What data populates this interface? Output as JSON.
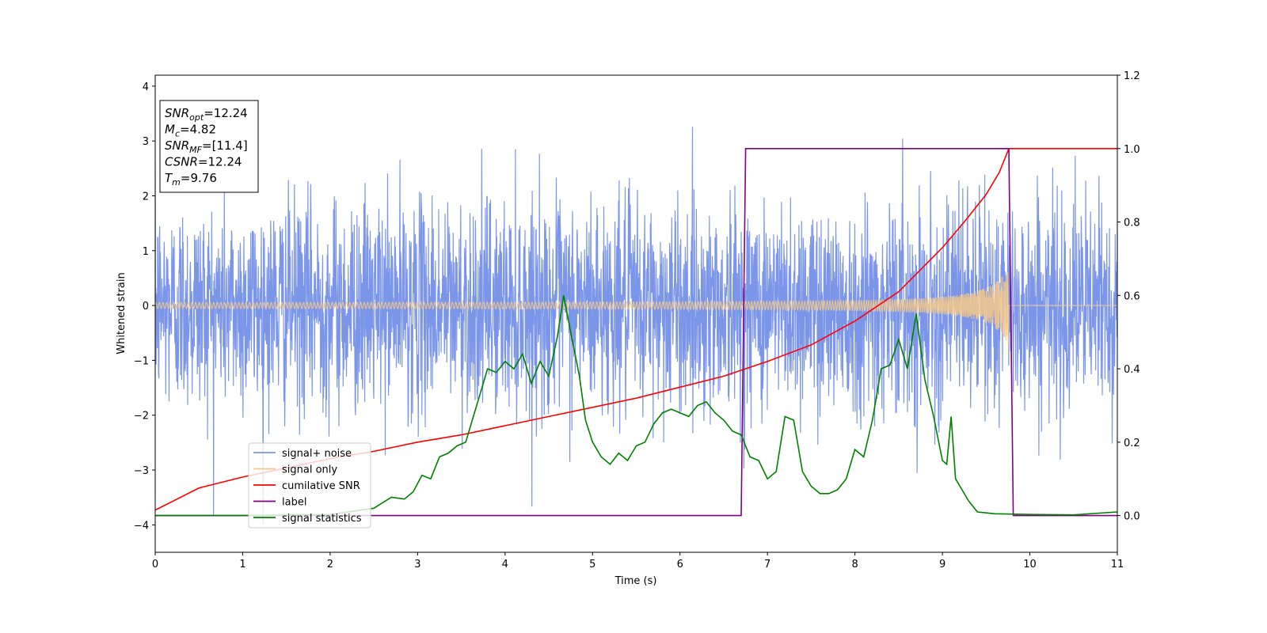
{
  "chart_data": {
    "type": "line",
    "title": "",
    "xlabel": "Time (s)",
    "ylabel": "Whitened strain",
    "xlim": [
      0,
      11
    ],
    "ylim": [
      -4.5,
      4.2
    ],
    "y2lim": [
      -0.1,
      1.2
    ],
    "x_ticks": [
      "0",
      "1",
      "2",
      "3",
      "4",
      "5",
      "6",
      "7",
      "8",
      "9",
      "10",
      "11"
    ],
    "y_ticks": [
      "−4",
      "−3",
      "−2",
      "−1",
      "0",
      "1",
      "2",
      "3",
      "4"
    ],
    "y2_ticks": [
      "0.0",
      "0.2",
      "0.4",
      "0.6",
      "0.8",
      "1.0",
      "1.2"
    ],
    "grid": false,
    "legend_position": "lower-left",
    "annotation_lines": [
      {
        "base": "SNR",
        "sub": "opt",
        "value": "=12.24"
      },
      {
        "base": "M",
        "sub": "c",
        "value": "=4.82"
      },
      {
        "base": "SNR",
        "sub": "MF",
        "value": "=[11.4]"
      },
      {
        "base": "CSNR",
        "sub": "",
        "value": "=12.24"
      },
      {
        "base": "T",
        "sub": "m",
        "value": "=9.76"
      }
    ],
    "series": [
      {
        "name": "signal+ noise",
        "color": "#7b96e8",
        "axis": "left",
        "kind": "noise",
        "std": 0.95,
        "t_end": 11
      },
      {
        "name": "signal only",
        "color": "#f5c88a",
        "axis": "left",
        "kind": "chirp",
        "t_start": 0,
        "t_merge": 9.76,
        "amp_start": 0.05,
        "amp_end": 0.75
      },
      {
        "name": "cumilative SNR",
        "color": "#ff0000",
        "axis": "right",
        "x": [
          0,
          0.5,
          1,
          1.5,
          2,
          2.5,
          3,
          3.5,
          4,
          4.5,
          5,
          5.5,
          6,
          6.5,
          7,
          7.5,
          8,
          8.5,
          9,
          9.25,
          9.5,
          9.65,
          9.76,
          10,
          10.5,
          11
        ],
        "values": [
          0.015,
          0.075,
          0.105,
          0.13,
          0.155,
          0.175,
          0.2,
          0.22,
          0.245,
          0.27,
          0.295,
          0.32,
          0.35,
          0.38,
          0.42,
          0.465,
          0.53,
          0.61,
          0.73,
          0.8,
          0.875,
          0.935,
          1.0,
          1.0,
          1.0,
          1.0
        ]
      },
      {
        "name": "label",
        "color": "#800080",
        "axis": "right",
        "x": [
          0,
          6.7,
          6.75,
          9.76,
          9.81,
          11
        ],
        "values": [
          0,
          0,
          1,
          1,
          0,
          0
        ]
      },
      {
        "name": "signal statistics",
        "color": "#008000",
        "axis": "right",
        "x": [
          0,
          1,
          2,
          2.5,
          2.7,
          2.85,
          2.95,
          3.05,
          3.15,
          3.25,
          3.35,
          3.45,
          3.55,
          3.7,
          3.8,
          3.9,
          4.0,
          4.1,
          4.2,
          4.3,
          4.4,
          4.5,
          4.6,
          4.67,
          4.75,
          4.85,
          4.92,
          5.0,
          5.1,
          5.2,
          5.3,
          5.4,
          5.5,
          5.6,
          5.7,
          5.8,
          5.9,
          6.0,
          6.1,
          6.2,
          6.3,
          6.4,
          6.5,
          6.6,
          6.7,
          6.8,
          6.9,
          7.0,
          7.1,
          7.2,
          7.3,
          7.4,
          7.5,
          7.6,
          7.7,
          7.8,
          7.9,
          8.0,
          8.1,
          8.2,
          8.3,
          8.4,
          8.5,
          8.6,
          8.7,
          8.8,
          8.9,
          9.0,
          9.05,
          9.1,
          9.15,
          9.2,
          9.3,
          9.4,
          9.6,
          10,
          10.5,
          11
        ],
        "values": [
          0,
          0,
          0.003,
          0.02,
          0.05,
          0.045,
          0.065,
          0.11,
          0.1,
          0.16,
          0.17,
          0.19,
          0.2,
          0.32,
          0.4,
          0.39,
          0.42,
          0.4,
          0.44,
          0.36,
          0.42,
          0.38,
          0.49,
          0.6,
          0.5,
          0.38,
          0.26,
          0.2,
          0.16,
          0.14,
          0.17,
          0.15,
          0.19,
          0.2,
          0.25,
          0.28,
          0.29,
          0.28,
          0.27,
          0.3,
          0.31,
          0.28,
          0.26,
          0.23,
          0.22,
          0.16,
          0.15,
          0.1,
          0.12,
          0.27,
          0.26,
          0.12,
          0.08,
          0.06,
          0.06,
          0.07,
          0.1,
          0.18,
          0.16,
          0.26,
          0.4,
          0.41,
          0.48,
          0.4,
          0.55,
          0.37,
          0.27,
          0.15,
          0.14,
          0.27,
          0.1,
          0.08,
          0.04,
          0.01,
          0.005,
          0.003,
          0.002,
          0.01
        ]
      }
    ]
  }
}
